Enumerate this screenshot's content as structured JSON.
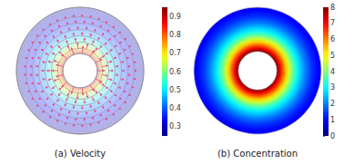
{
  "chart_data": [
    {
      "type": "vector_field",
      "title": "(a) Velocity",
      "color": "#e8457f",
      "r": [
        0.27,
        0.35,
        0.45,
        0.55,
        0.65,
        0.75,
        0.85,
        1.0
      ],
      "values": [
        0.9,
        0.72,
        0.56,
        0.46,
        0.4,
        0.35,
        0.31,
        0.27
      ],
      "colorbar": {
        "range": [
          0.25,
          0.95
        ],
        "ticks": [
          0.3,
          0.4,
          0.5,
          0.6,
          0.7,
          0.8,
          0.9
        ]
      }
    },
    {
      "type": "heatmap",
      "title": "(b) Concentration",
      "r": [
        0.3,
        0.35,
        0.4,
        0.45,
        0.5,
        0.55,
        0.6,
        0.65,
        0.7,
        0.75,
        0.8,
        0.85,
        0.9,
        0.95,
        1.0
      ],
      "values": [
        8,
        7.2,
        6.3,
        5.4,
        4.6,
        3.9,
        3.3,
        2.8,
        2.4,
        2.0,
        1.7,
        1.4,
        1.2,
        1.0,
        0.9
      ],
      "colorbar": {
        "range": [
          0,
          8
        ],
        "ticks": [
          0,
          1,
          2,
          3,
          4,
          5,
          6,
          7,
          8
        ]
      }
    }
  ]
}
